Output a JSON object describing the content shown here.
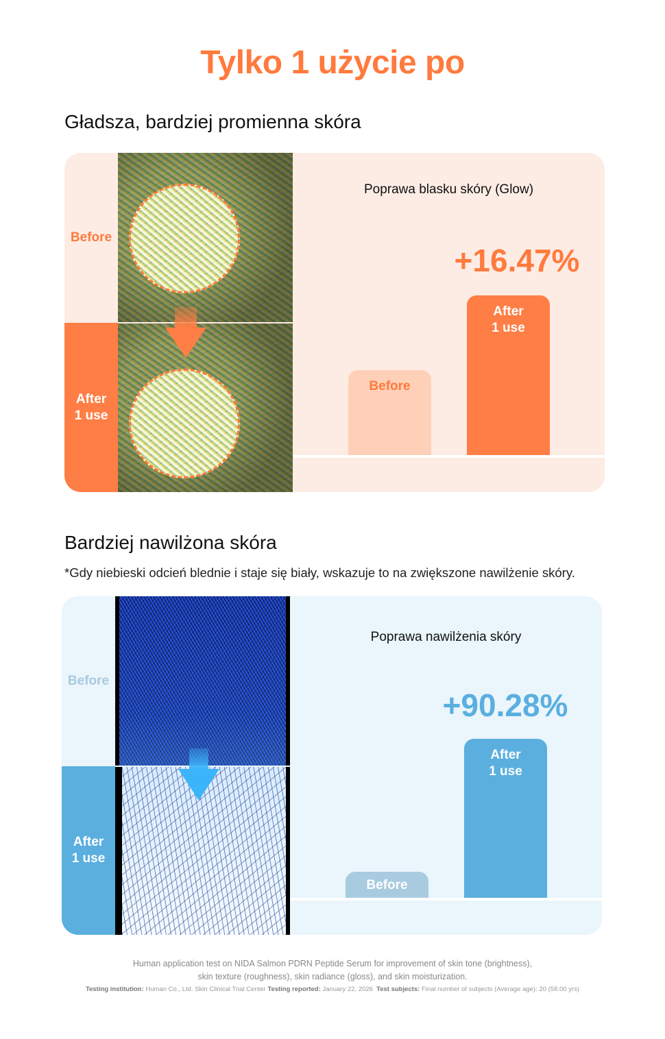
{
  "title": "Tylko 1 użycie po",
  "section1": {
    "heading": "Gładsza, bardziej promienna skóra",
    "label_before": "Before",
    "label_after": "After\n1 use",
    "chart_title": "Poprawa blasku skóry (Glow)",
    "improvement": "+16.47%",
    "bar_before": "Before",
    "bar_after": "After\n1 use",
    "colors": {
      "accent": "#ff7e45",
      "light": "#ffd0b8",
      "bg": "#fdece4"
    }
  },
  "section2": {
    "heading": "Bardziej nawilżona skóra",
    "note": "*Gdy niebieski odcień blednie i staje się biały, wskazuje to na zwiększone nawilżenie skóry.",
    "label_before": "Before",
    "label_after": "After\n1 use",
    "chart_title": "Poprawa nawilżenia skóry",
    "improvement": "+90.28%",
    "bar_before": "Before",
    "bar_after": "After\n1 use",
    "colors": {
      "accent": "#5aafdf",
      "light": "#a9cbe0",
      "bg": "#eaf5fc"
    }
  },
  "footer": {
    "line1": "Human application test on NIDA Salmon PDRN Peptide Serum for improvement of skin tone (brightness),",
    "line2": "skin texture (roughness), skin radiance (gloss), and skin moisturization.",
    "institution_label": "Testing institution:",
    "institution": "Human Co., Ltd. Skin Clinical Trial Center",
    "reported_label": "Testing reported:",
    "reported": "January 22, 2026",
    "subjects_label": "Test subjects:",
    "subjects": "Final number of subjects (Average age): 20 (58.00 yrs)"
  }
}
